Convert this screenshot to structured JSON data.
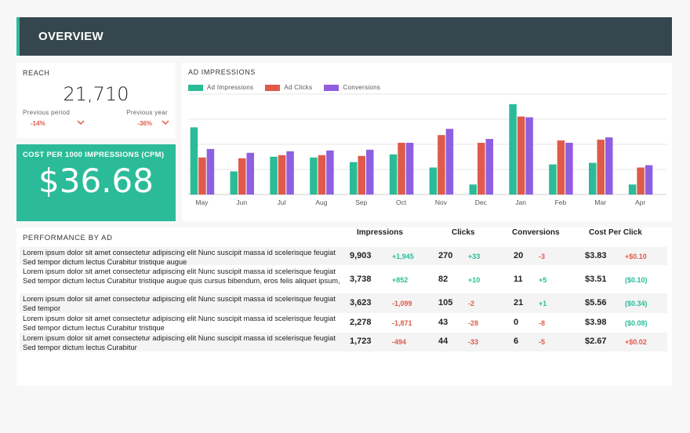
{
  "header": {
    "title": "OVERVIEW"
  },
  "reach": {
    "title": "REACH",
    "value": "21,710",
    "previous_period_label": "Previous period",
    "previous_period_value": "-14%",
    "previous_year_label": "Previous year",
    "previous_year_value": "-36%"
  },
  "cpm": {
    "title": "COST PER 1000 IMPRESSIONS (CPM)",
    "value": "$36.68"
  },
  "ad_chart": {
    "title": "AD IMPRESSIONS"
  },
  "colors": {
    "teal": "#2bbb98",
    "red": "#e05a4a",
    "purple": "#8e5fe0",
    "header": "#36464f"
  },
  "chart_data": {
    "type": "bar",
    "title": "AD IMPRESSIONS",
    "categories": [
      "May",
      "Jun",
      "Jul",
      "Aug",
      "Sep",
      "Oct",
      "Nov",
      "Dec",
      "Jan",
      "Feb",
      "Mar",
      "Apr"
    ],
    "series": [
      {
        "name": "Ad Impressions",
        "color": "#2bbb98",
        "values": [
          87,
          30,
          49,
          48,
          42,
          52,
          35,
          13,
          117,
          39,
          41,
          13
        ]
      },
      {
        "name": "Ad Clicks",
        "color": "#e05a4a",
        "values": [
          48,
          47,
          51,
          51,
          50,
          67,
          77,
          67,
          101,
          70,
          71,
          35
        ]
      },
      {
        "name": "Conversions",
        "color": "#8e5fe0",
        "values": [
          59,
          54,
          56,
          57,
          58,
          67,
          85,
          72,
          100,
          67,
          74,
          38
        ]
      }
    ],
    "ylim": [
      0,
      130
    ],
    "grid": true,
    "legend": "top-left"
  },
  "performance": {
    "title": "PERFORMANCE BY AD",
    "columns": [
      "Impressions",
      "Clicks",
      "Conversions",
      "Cost Per Click"
    ],
    "rows": [
      {
        "desc": "Lorem ipsum dolor sit amet consectetur adipiscing elit Nunc suscipit massa id scelerisque feugiat Sed tempor dictum lectus Curabitur tristique augue",
        "impressions": "9,903",
        "impressions_delta": "+1,945",
        "impressions_dir": "pos",
        "clicks": "270",
        "clicks_delta": "+33",
        "clicks_dir": "pos",
        "conversions": "20",
        "conversions_delta": "-3",
        "conversions_dir": "neg",
        "cpc": "$3.83",
        "cpc_delta": "+$0.10",
        "cpc_dir": "neg"
      },
      {
        "desc": "Lorem ipsum dolor sit amet consectetur adipiscing elit Nunc suscipit massa id scelerisque feugiat Sed tempor dictum lectus Curabitur tristique augue quis cursus bibendum, eros felis aliquet ipsum,",
        "impressions": "3,738",
        "impressions_delta": "+852",
        "impressions_dir": "pos",
        "clicks": "82",
        "clicks_delta": "+10",
        "clicks_dir": "pos",
        "conversions": "11",
        "conversions_delta": "+5",
        "conversions_dir": "pos",
        "cpc": "$3.51",
        "cpc_delta": "($0.10)",
        "cpc_dir": "pos"
      },
      {
        "desc": "Lorem ipsum dolor sit amet consectetur adipiscing elit Nunc suscipit massa id scelerisque feugiat Sed tempor",
        "impressions": "3,623",
        "impressions_delta": "-1,099",
        "impressions_dir": "neg",
        "clicks": "105",
        "clicks_delta": "-2",
        "clicks_dir": "neg",
        "conversions": "21",
        "conversions_delta": "+1",
        "conversions_dir": "pos",
        "cpc": "$5.56",
        "cpc_delta": "($0.34)",
        "cpc_dir": "pos"
      },
      {
        "desc": "Lorem ipsum dolor sit amet consectetur adipiscing elit Nunc suscipit massa id scelerisque feugiat Sed tempor dictum lectus Curabitur tristique",
        "impressions": "2,278",
        "impressions_delta": "-1,871",
        "impressions_dir": "neg",
        "clicks": "43",
        "clicks_delta": "-28",
        "clicks_dir": "neg",
        "conversions": "0",
        "conversions_delta": "-8",
        "conversions_dir": "neg",
        "cpc": "$3.98",
        "cpc_delta": "($0.08)",
        "cpc_dir": "pos"
      },
      {
        "desc": "Lorem ipsum dolor sit amet consectetur adipiscing elit Nunc suscipit massa id scelerisque feugiat Sed tempor dictum lectus Curabitur",
        "impressions": "1,723",
        "impressions_delta": "-494",
        "impressions_dir": "neg",
        "clicks": "44",
        "clicks_delta": "-33",
        "clicks_dir": "neg",
        "conversions": "6",
        "conversions_delta": "-5",
        "conversions_dir": "neg",
        "cpc": "$2.67",
        "cpc_delta": "+$0.02",
        "cpc_dir": "neg"
      }
    ]
  }
}
